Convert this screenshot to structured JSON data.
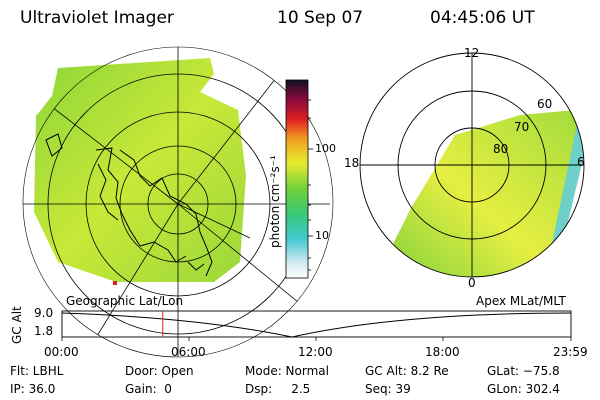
{
  "header": {
    "title": "Ultraviolet Imager",
    "date": "10 Sep 07",
    "time": "04:45:06 UT"
  },
  "colorbar": {
    "unit_label": "photon cm⁻²s⁻¹",
    "ticks": [
      "100",
      "10"
    ]
  },
  "left_map": {
    "caption": "Geographic Lat/Lon"
  },
  "right_map": {
    "caption": "Apex MLat/MLT",
    "mlt_labels": {
      "top": "12",
      "left": "18",
      "right": "6",
      "bottom": "0"
    },
    "lat_labels": [
      "60",
      "70",
      "80"
    ]
  },
  "timeline": {
    "y_label": "GC Alt",
    "y_ticks": [
      "9.0",
      "1.8"
    ],
    "x_ticks": [
      "00:00",
      "06:00",
      "12:00",
      "18:00",
      "23:59"
    ],
    "current_time_fraction": 0.198
  },
  "info": {
    "row1": [
      "Flt: LBHL",
      "Door: Open",
      "Mode: Normal",
      "GC Alt: 8.2 Re",
      "GLat: −75.8"
    ],
    "row2": [
      "IP: 36.0",
      "Gain:  0",
      "Dsp:     2.5",
      "Seq: 39",
      "GLon: 302.4"
    ]
  },
  "colors": {
    "image_green": "#7cd43c",
    "image_yellow": "#e8f040",
    "marker_red": "#e02020"
  }
}
